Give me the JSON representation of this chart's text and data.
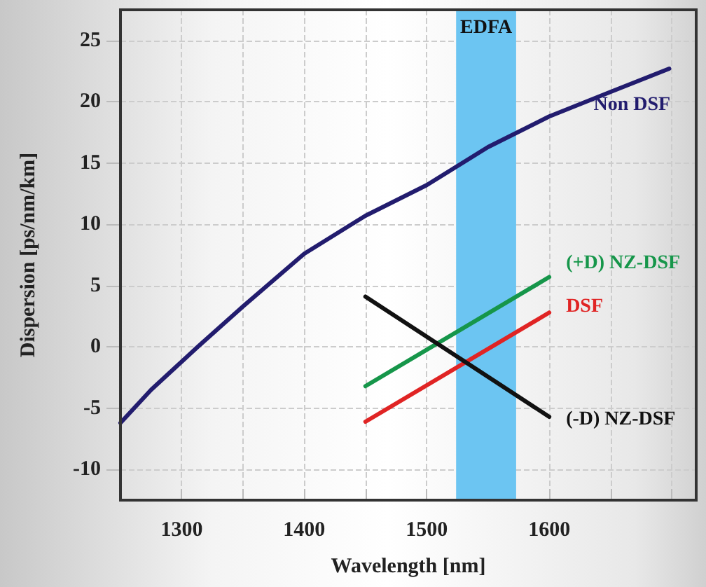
{
  "chart_data": {
    "type": "line",
    "xlabel": "Wavelength [nm]",
    "ylabel": "Dispersion [ps/nm/km]",
    "xlim": [
      1250,
      1720
    ],
    "xticks": [
      {
        "value": 1250,
        "label": null
      },
      1300,
      {
        "value": 1350,
        "label": null
      },
      1400,
      {
        "value": 1450,
        "label": null
      },
      1500,
      {
        "value": 1550,
        "label": null
      },
      1600,
      {
        "value": 1650,
        "label": null
      },
      {
        "value": 1700,
        "label": null
      }
    ],
    "ylim": [
      -12.5,
      27.5
    ],
    "yticks": [
      -10,
      -5,
      0,
      5,
      10,
      15,
      20,
      25
    ],
    "grid": true,
    "legend": false,
    "marker": "none",
    "line_style": "solid",
    "series": [
      {
        "name": "Non DSF",
        "color": "#221c6e",
        "x": [
          1250,
          1275,
          1300,
          1313,
          1350,
          1400,
          1450,
          1500,
          1550,
          1600,
          1650,
          1698
        ],
        "values": [
          -6.2,
          -3.5,
          -1.2,
          0,
          3.3,
          7.6,
          10.7,
          13.2,
          16.3,
          18.8,
          20.8,
          22.7
        ]
      },
      {
        "name": "(+D) NZ-DSF",
        "color": "#16964a",
        "x": [
          1450,
          1600
        ],
        "values": [
          -3.2,
          5.7
        ]
      },
      {
        "name": "DSF",
        "color": "#e02424",
        "x": [
          1450,
          1600
        ],
        "values": [
          -6.1,
          2.8
        ]
      },
      {
        "name": "(-D) NZ-DSF",
        "color": "#111111",
        "x": [
          1450,
          1600
        ],
        "values": [
          4.1,
          -5.7
        ]
      }
    ],
    "bands": [
      {
        "axis": "x",
        "from": 1524,
        "to": 1573,
        "label": "EDFA",
        "color": "#6cc5f2"
      }
    ]
  }
}
